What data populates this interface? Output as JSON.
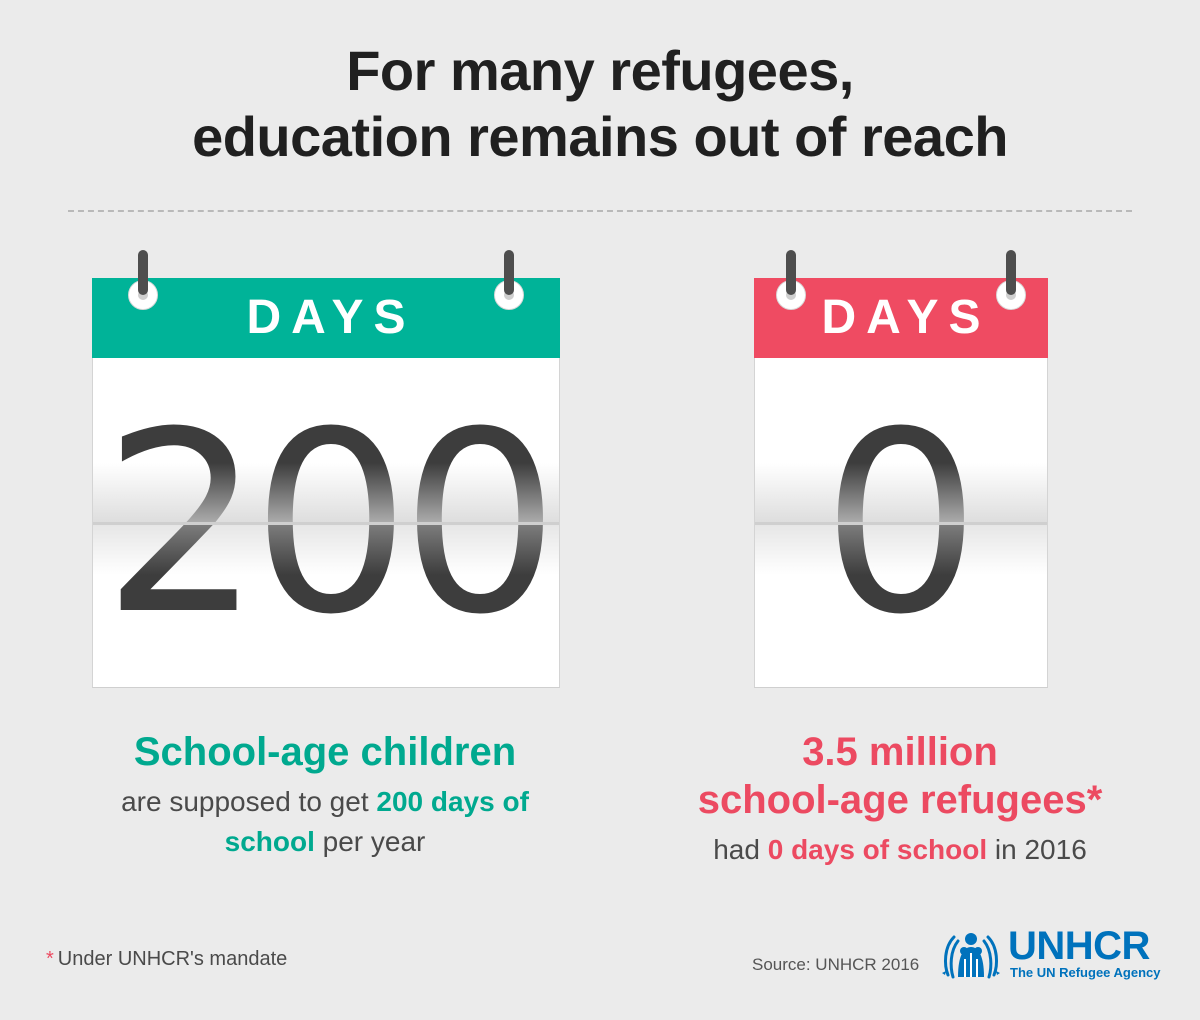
{
  "title": {
    "line1": "For many refugees,",
    "line2": "education remains out of reach"
  },
  "calendars": [
    {
      "header": "DAYS",
      "number": "200",
      "color": "#00b398"
    },
    {
      "header": "DAYS",
      "number": "0",
      "color": "#ef4b62"
    }
  ],
  "left_caption": {
    "heading": "School-age children",
    "text_before": "are supposed to get ",
    "highlight": "200 days of school",
    "text_after": " per year"
  },
  "right_caption": {
    "heading_line1": "3.5 million",
    "heading_line2": "school-age refugees*",
    "text_before": "had ",
    "highlight": "0 days of school",
    "text_after": " in 2016"
  },
  "footnote": {
    "marker": "*",
    "text": "Under UNHCR's mandate"
  },
  "source": "Source: UNHCR 2016",
  "logo": {
    "name": "UNHCR",
    "tagline": "The UN Refugee Agency",
    "emblem_icon": "unhcr-emblem-icon"
  },
  "colors": {
    "teal": "#00b398",
    "red": "#ef4b62",
    "unhcr_blue": "#0072bc"
  }
}
